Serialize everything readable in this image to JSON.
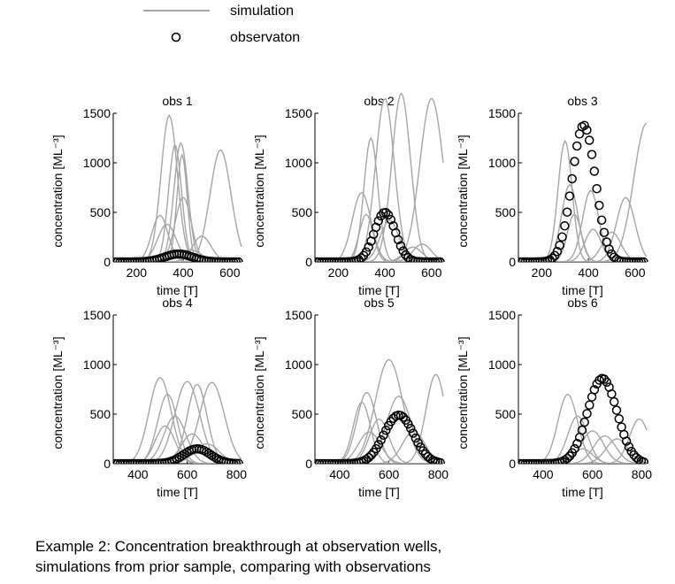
{
  "legend": {
    "simulation_label": "simulation",
    "observation_label": "observaton"
  },
  "caption": {
    "line1": "Example 2: Concentration breakthrough at observation wells,",
    "line2": "simulations from prior sample, comparing with observations"
  },
  "colors": {
    "simulation": "#a6a6a6",
    "observation": "#000000",
    "axis": "#000000"
  },
  "chart_data": [
    {
      "type": "line",
      "title": "obs 1",
      "xlabel": "time [T]",
      "ylabel": "concentration [ML⁻³]",
      "xlim": [
        100,
        650
      ],
      "ylim": [
        0,
        1500
      ],
      "xticks": [
        200,
        400,
        600
      ],
      "yticks": [
        0,
        500,
        1000,
        1500
      ],
      "series": [
        {
          "kind": "simulation",
          "peak_x": 340,
          "peak_y": 1480,
          "width": 35
        },
        {
          "kind": "simulation",
          "peak_x": 365,
          "peak_y": 1180,
          "width": 28
        },
        {
          "kind": "simulation",
          "peak_x": 390,
          "peak_y": 1200,
          "width": 30
        },
        {
          "kind": "simulation",
          "peak_x": 395,
          "peak_y": 1080,
          "width": 22
        },
        {
          "kind": "simulation",
          "peak_x": 400,
          "peak_y": 650,
          "width": 35
        },
        {
          "kind": "simulation",
          "peak_x": 300,
          "peak_y": 470,
          "width": 35
        },
        {
          "kind": "simulation",
          "peak_x": 330,
          "peak_y": 380,
          "width": 40
        },
        {
          "kind": "simulation",
          "peak_x": 560,
          "peak_y": 1130,
          "width": 45
        },
        {
          "kind": "simulation",
          "peak_x": 480,
          "peak_y": 260,
          "width": 40
        },
        {
          "kind": "simulation",
          "peak_x": 430,
          "peak_y": 120,
          "width": 50
        },
        {
          "kind": "observation",
          "peak_x": 380,
          "peak_y": 80,
          "width": 60
        }
      ]
    },
    {
      "type": "line",
      "title": "obs 2",
      "xlabel": "time [T]",
      "ylabel": "concentration [ML⁻³]",
      "xlim": [
        100,
        650
      ],
      "ylim": [
        0,
        1500
      ],
      "xticks": [
        200,
        400,
        600
      ],
      "yticks": [
        0,
        500,
        1000,
        1500
      ],
      "series": [
        {
          "kind": "simulation",
          "peak_x": 400,
          "peak_y": 1650,
          "width": 40
        },
        {
          "kind": "simulation",
          "peak_x": 340,
          "peak_y": 1250,
          "width": 30
        },
        {
          "kind": "simulation",
          "peak_x": 300,
          "peak_y": 700,
          "width": 40
        },
        {
          "kind": "simulation",
          "peak_x": 320,
          "peak_y": 480,
          "width": 30
        },
        {
          "kind": "simulation",
          "peak_x": 470,
          "peak_y": 1700,
          "width": 40
        },
        {
          "kind": "simulation",
          "peak_x": 600,
          "peak_y": 1650,
          "width": 50
        },
        {
          "kind": "simulation",
          "peak_x": 420,
          "peak_y": 420,
          "width": 40
        },
        {
          "kind": "simulation",
          "peak_x": 560,
          "peak_y": 180,
          "width": 40
        },
        {
          "kind": "simulation",
          "peak_x": 520,
          "peak_y": 150,
          "width": 40
        },
        {
          "kind": "observation",
          "peak_x": 400,
          "peak_y": 500,
          "width": 45
        }
      ]
    },
    {
      "type": "line",
      "title": "obs 3",
      "xlabel": "time [T]",
      "ylabel": "concentration [ML⁻³]",
      "xlim": [
        100,
        650
      ],
      "ylim": [
        0,
        1500
      ],
      "xticks": [
        200,
        400,
        600
      ],
      "yticks": [
        0,
        500,
        1000,
        1500
      ],
      "series": [
        {
          "kind": "simulation",
          "peak_x": 300,
          "peak_y": 1220,
          "width": 30
        },
        {
          "kind": "simulation",
          "peak_x": 320,
          "peak_y": 780,
          "width": 35
        },
        {
          "kind": "simulation",
          "peak_x": 340,
          "peak_y": 480,
          "width": 30
        },
        {
          "kind": "simulation",
          "peak_x": 410,
          "peak_y": 720,
          "width": 35
        },
        {
          "kind": "simulation",
          "peak_x": 420,
          "peak_y": 330,
          "width": 35
        },
        {
          "kind": "simulation",
          "peak_x": 560,
          "peak_y": 650,
          "width": 40
        },
        {
          "kind": "simulation",
          "peak_x": 650,
          "peak_y": 1400,
          "width": 55
        },
        {
          "kind": "simulation",
          "peak_x": 500,
          "peak_y": 300,
          "width": 40
        },
        {
          "kind": "observation",
          "peak_x": 380,
          "peak_y": 1380,
          "width": 50
        }
      ]
    },
    {
      "type": "line",
      "title": "obs 4",
      "xlabel": "time [T]",
      "ylabel": "concentration [ML⁻³]",
      "xlim": [
        300,
        820
      ],
      "ylim": [
        0,
        1500
      ],
      "xticks": [
        400,
        600,
        800
      ],
      "yticks": [
        0,
        500,
        1000,
        1500
      ],
      "series": [
        {
          "kind": "simulation",
          "peak_x": 490,
          "peak_y": 870,
          "width": 45
        },
        {
          "kind": "simulation",
          "peak_x": 520,
          "peak_y": 700,
          "width": 40
        },
        {
          "kind": "simulation",
          "peak_x": 600,
          "peak_y": 830,
          "width": 50
        },
        {
          "kind": "simulation",
          "peak_x": 640,
          "peak_y": 800,
          "width": 40
        },
        {
          "kind": "simulation",
          "peak_x": 700,
          "peak_y": 820,
          "width": 50
        },
        {
          "kind": "simulation",
          "peak_x": 550,
          "peak_y": 480,
          "width": 45
        },
        {
          "kind": "simulation",
          "peak_x": 510,
          "peak_y": 380,
          "width": 40
        },
        {
          "kind": "simulation",
          "peak_x": 620,
          "peak_y": 300,
          "width": 45
        },
        {
          "kind": "simulation",
          "peak_x": 680,
          "peak_y": 200,
          "width": 50
        },
        {
          "kind": "observation",
          "peak_x": 640,
          "peak_y": 150,
          "width": 55
        }
      ]
    },
    {
      "type": "line",
      "title": "obs 5",
      "xlabel": "time [T]",
      "ylabel": "concentration [ML⁻³]",
      "xlim": [
        300,
        820
      ],
      "ylim": [
        0,
        1500
      ],
      "xticks": [
        400,
        600,
        800
      ],
      "yticks": [
        0,
        500,
        1000,
        1500
      ],
      "series": [
        {
          "kind": "simulation",
          "peak_x": 510,
          "peak_y": 720,
          "width": 40
        },
        {
          "kind": "simulation",
          "peak_x": 490,
          "peak_y": 620,
          "width": 35
        },
        {
          "kind": "simulation",
          "peak_x": 600,
          "peak_y": 1050,
          "width": 55
        },
        {
          "kind": "simulation",
          "peak_x": 560,
          "peak_y": 450,
          "width": 40
        },
        {
          "kind": "simulation",
          "peak_x": 640,
          "peak_y": 680,
          "width": 50
        },
        {
          "kind": "simulation",
          "peak_x": 790,
          "peak_y": 900,
          "width": 40
        },
        {
          "kind": "simulation",
          "peak_x": 520,
          "peak_y": 320,
          "width": 45
        },
        {
          "kind": "simulation",
          "peak_x": 700,
          "peak_y": 330,
          "width": 45
        },
        {
          "kind": "observation",
          "peak_x": 640,
          "peak_y": 490,
          "width": 60
        }
      ]
    },
    {
      "type": "line",
      "title": "obs 6",
      "xlabel": "time [T]",
      "ylabel": "concentration [ML⁻³]",
      "xlim": [
        300,
        820
      ],
      "ylim": [
        0,
        1500
      ],
      "xticks": [
        400,
        600,
        800
      ],
      "yticks": [
        0,
        500,
        1000,
        1500
      ],
      "series": [
        {
          "kind": "simulation",
          "peak_x": 500,
          "peak_y": 700,
          "width": 40
        },
        {
          "kind": "simulation",
          "peak_x": 540,
          "peak_y": 480,
          "width": 40
        },
        {
          "kind": "simulation",
          "peak_x": 600,
          "peak_y": 330,
          "width": 45
        },
        {
          "kind": "simulation",
          "peak_x": 650,
          "peak_y": 280,
          "width": 45
        },
        {
          "kind": "simulation",
          "peak_x": 700,
          "peak_y": 250,
          "width": 45
        },
        {
          "kind": "simulation",
          "peak_x": 790,
          "peak_y": 450,
          "width": 40
        },
        {
          "kind": "simulation",
          "peak_x": 560,
          "peak_y": 150,
          "width": 40
        },
        {
          "kind": "observation",
          "peak_x": 640,
          "peak_y": 860,
          "width": 60
        }
      ]
    }
  ]
}
